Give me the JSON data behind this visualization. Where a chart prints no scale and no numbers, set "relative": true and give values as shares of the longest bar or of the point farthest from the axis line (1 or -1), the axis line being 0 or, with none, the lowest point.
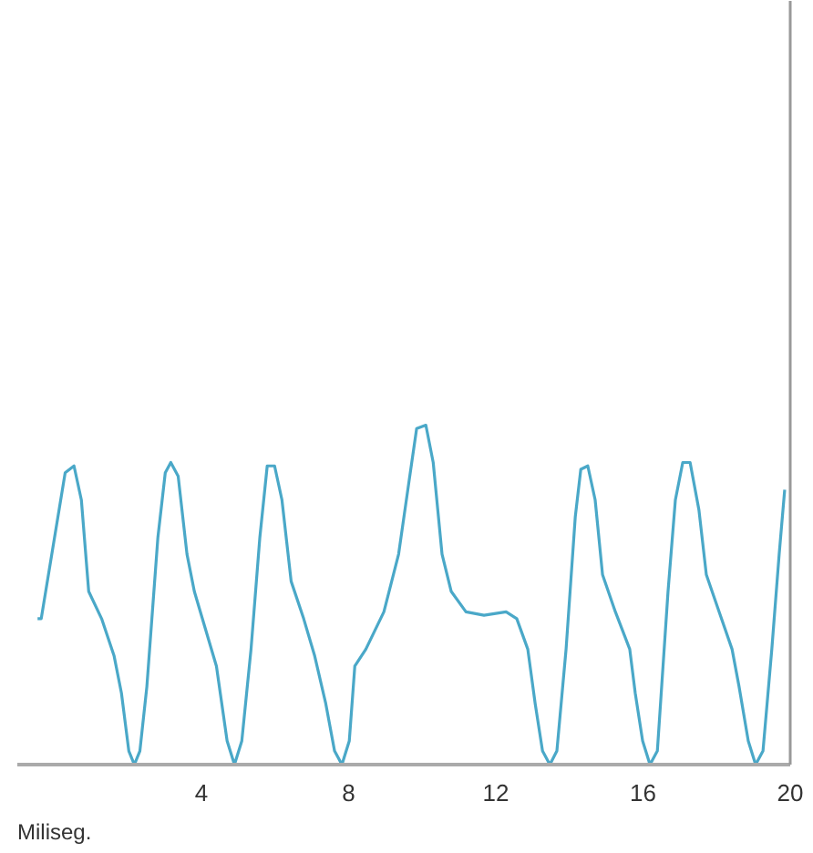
{
  "chart_data": {
    "type": "line",
    "relative": true,
    "xlabel": "Miliseg.",
    "xlim": [
      -1,
      20
    ],
    "xticks": [
      4,
      8,
      12,
      16,
      20
    ],
    "grid": false,
    "series": [
      {
        "color": "#4aa8c8",
        "x": [
          -0.45,
          -0.35,
          0.3,
          0.54,
          0.74,
          0.94,
          1.29,
          1.63,
          1.83,
          2.03,
          2.18,
          2.33,
          2.52,
          2.82,
          3.02,
          3.17,
          3.37,
          3.61,
          3.81,
          4.11,
          4.41,
          4.7,
          4.9,
          5.1,
          5.35,
          5.59,
          5.79,
          5.99,
          6.19,
          6.44,
          6.78,
          7.08,
          7.38,
          7.62,
          7.82,
          8.02,
          8.17,
          8.47,
          8.96,
          9.36,
          9.65,
          9.85,
          10.1,
          10.3,
          10.54,
          10.79,
          11.19,
          11.68,
          12.28,
          12.57,
          12.87,
          13.07,
          13.27,
          13.47,
          13.66,
          13.91,
          14.16,
          14.31,
          14.5,
          14.7,
          14.9,
          15.25,
          15.64,
          15.79,
          15.99,
          16.19,
          16.39,
          16.68,
          16.88,
          17.08,
          17.28,
          17.52,
          17.72,
          18.07,
          18.42,
          18.61,
          18.86,
          19.06,
          19.26,
          19.5,
          19.7,
          19.85
        ],
        "values": [
          0.43,
          0.43,
          0.86,
          0.88,
          0.78,
          0.51,
          0.43,
          0.32,
          0.21,
          0.04,
          0,
          0.04,
          0.23,
          0.67,
          0.86,
          0.89,
          0.85,
          0.62,
          0.51,
          0.4,
          0.29,
          0.07,
          0,
          0.07,
          0.34,
          0.67,
          0.88,
          0.88,
          0.78,
          0.54,
          0.43,
          0.32,
          0.18,
          0.04,
          0,
          0.07,
          0.29,
          0.34,
          0.45,
          0.62,
          0.84,
          0.99,
          1,
          0.89,
          0.62,
          0.51,
          0.45,
          0.44,
          0.45,
          0.43,
          0.34,
          0.18,
          0.04,
          0,
          0.04,
          0.34,
          0.73,
          0.87,
          0.88,
          0.78,
          0.56,
          0.45,
          0.34,
          0.21,
          0.07,
          0,
          0.04,
          0.51,
          0.78,
          0.89,
          0.89,
          0.75,
          0.56,
          0.45,
          0.34,
          0.23,
          0.07,
          0,
          0.04,
          0.34,
          0.62,
          0.81
        ]
      }
    ]
  }
}
